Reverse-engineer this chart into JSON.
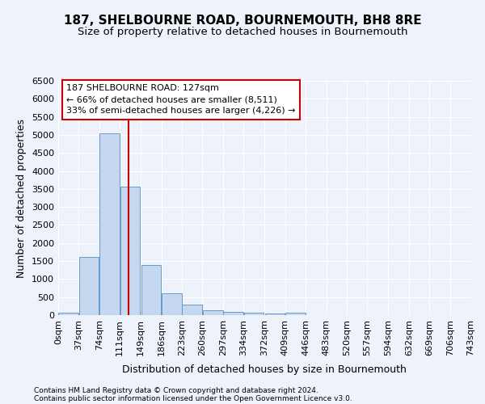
{
  "title": "187, SHELBOURNE ROAD, BOURNEMOUTH, BH8 8RE",
  "subtitle": "Size of property relative to detached houses in Bournemouth",
  "xlabel": "Distribution of detached houses by size in Bournemouth",
  "ylabel": "Number of detached properties",
  "footer1": "Contains HM Land Registry data © Crown copyright and database right 2024.",
  "footer2": "Contains public sector information licensed under the Open Government Licence v3.0.",
  "bins": [
    0,
    37,
    74,
    111,
    149,
    186,
    223,
    260,
    297,
    334,
    372,
    409,
    446,
    483,
    520,
    557,
    594,
    632,
    669,
    706,
    743
  ],
  "counts": [
    75,
    1620,
    5050,
    3570,
    1400,
    610,
    290,
    130,
    95,
    65,
    45,
    65,
    0,
    0,
    0,
    0,
    0,
    0,
    0,
    0
  ],
  "bar_color": "#c5d8ef",
  "bar_edge_color": "#6699cc",
  "property_size": 127,
  "vline_color": "#cc0000",
  "annotation_line1": "187 SHELBOURNE ROAD: 127sqm",
  "annotation_line2": "← 66% of detached houses are smaller (8,511)",
  "annotation_line3": "33% of semi-detached houses are larger (4,226) →",
  "annotation_box_color": "#ffffff",
  "annotation_box_edge": "#cc0000",
  "ylim": [
    0,
    6500
  ],
  "yticks": [
    0,
    500,
    1000,
    1500,
    2000,
    2500,
    3000,
    3500,
    4000,
    4500,
    5000,
    5500,
    6000,
    6500
  ],
  "background_color": "#eef2fb",
  "grid_color": "#ffffff",
  "title_fontsize": 11,
  "subtitle_fontsize": 9.5,
  "axis_label_fontsize": 9,
  "tick_fontsize": 8,
  "annotation_fontsize": 8
}
